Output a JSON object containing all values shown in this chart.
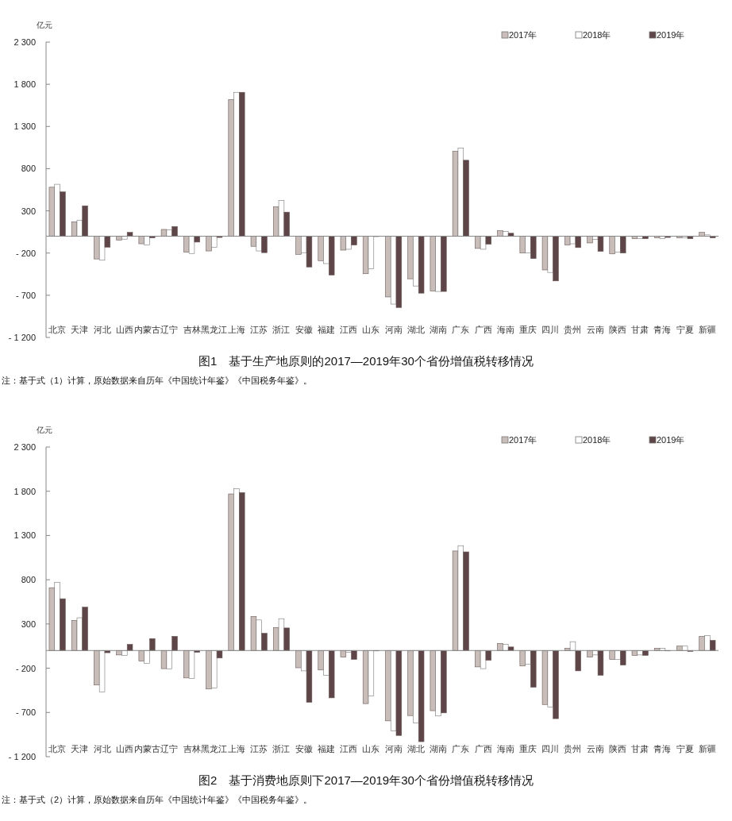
{
  "chart_data": [
    {
      "type": "bar",
      "title": "图1　基于生产地原则的2017—2019年30个省份增值税转移情况",
      "ylabel": "亿元",
      "annotations": [
        "注：基于式（1）计算，原始数据来自历年《中国统计年鉴》《中国税务年鉴》。"
      ],
      "categories": [
        "北京",
        "天津",
        "河北",
        "山西",
        "内蒙古",
        "辽宁",
        "吉林",
        "黑龙江",
        "上海",
        "江苏",
        "浙江",
        "安徽",
        "福建",
        "江西",
        "山东",
        "河南",
        "湖北",
        "湖南",
        "广东",
        "广西",
        "海南",
        "重庆",
        "四川",
        "贵州",
        "云南",
        "陕西",
        "甘肃",
        "青海",
        "宁夏",
        "新疆"
      ],
      "series": [
        {
          "name": "2017年",
          "color": "#c8bdb8",
          "values": [
            580,
            170,
            -270,
            -45,
            -90,
            80,
            -190,
            -175,
            1620,
            -120,
            350,
            -215,
            -290,
            -165,
            -445,
            -720,
            -505,
            -650,
            1005,
            -145,
            65,
            -200,
            -400,
            -105,
            -80,
            -210,
            -30,
            -20,
            -20,
            45
          ]
        },
        {
          "name": "2018年",
          "color": "#ffffff",
          "values": [
            615,
            190,
            -285,
            -35,
            -105,
            75,
            -205,
            -130,
            1705,
            -175,
            425,
            -195,
            -325,
            -155,
            -385,
            -805,
            -590,
            -655,
            1045,
            -155,
            55,
            -200,
            -430,
            -90,
            -40,
            -190,
            -30,
            -30,
            -20,
            15
          ]
        },
        {
          "name": "2019年",
          "color": "#5e4548",
          "values": [
            525,
            360,
            -130,
            45,
            -20,
            115,
            -70,
            -15,
            1705,
            -195,
            285,
            -365,
            -460,
            -105,
            0,
            -845,
            -675,
            -655,
            900,
            -95,
            35,
            -265,
            -530,
            -135,
            -180,
            -200,
            -30,
            -15,
            -30,
            -20
          ]
        }
      ],
      "ylim": [
        -1200,
        2300
      ],
      "yticks": [
        {
          "value": 2300,
          "label": "2 300"
        },
        {
          "value": 1800,
          "label": "1 800"
        },
        {
          "value": 1300,
          "label": "1 300"
        },
        {
          "value": 800,
          "label": "800"
        },
        {
          "value": 300,
          "label": "300"
        },
        {
          "value": -200,
          "label": "- 200"
        },
        {
          "value": -700,
          "label": "- 700"
        },
        {
          "value": -1200,
          "label": "- 1 200"
        }
      ],
      "legend": "top right",
      "grid": false
    },
    {
      "type": "bar",
      "title": "图2　基于消费地原则下2017—2019年30个省份增值税转移情况",
      "ylabel": "亿元",
      "annotations": [
        "注：基于式（2）计算，原始数据来自历年《中国统计年鉴》《中国税务年鉴》。"
      ],
      "categories": [
        "北京",
        "天津",
        "河北",
        "山西",
        "内蒙古",
        "辽宁",
        "吉林",
        "黑龙江",
        "上海",
        "江苏",
        "浙江",
        "安徽",
        "福建",
        "江西",
        "山东",
        "河南",
        "湖北",
        "湖南",
        "广东",
        "广西",
        "海南",
        "重庆",
        "四川",
        "贵州",
        "云南",
        "陕西",
        "甘肃",
        "青海",
        "宁夏",
        "新疆"
      ],
      "series": [
        {
          "name": "2017年",
          "color": "#c8bdb8",
          "values": [
            710,
            340,
            -390,
            -50,
            -120,
            -205,
            -310,
            -435,
            1770,
            385,
            260,
            -195,
            -220,
            -75,
            -600,
            -795,
            -735,
            -680,
            1125,
            -185,
            80,
            -175,
            -610,
            25,
            -75,
            -100,
            -55,
            25,
            50,
            160
          ]
        },
        {
          "name": "2018年",
          "color": "#ffffff",
          "values": [
            770,
            370,
            -470,
            -55,
            -145,
            -210,
            -315,
            -425,
            1830,
            345,
            360,
            -230,
            -280,
            -20,
            -515,
            -910,
            -820,
            -740,
            1185,
            -205,
            70,
            -155,
            -640,
            100,
            -50,
            -100,
            -50,
            25,
            50,
            170
          ]
        },
        {
          "name": "2019年",
          "color": "#5e4548",
          "values": [
            585,
            490,
            -25,
            70,
            135,
            160,
            -20,
            -85,
            1785,
            195,
            255,
            -585,
            -535,
            -100,
            0,
            -960,
            -1030,
            -705,
            1115,
            -110,
            40,
            -415,
            -770,
            -230,
            -280,
            -165,
            -55,
            0,
            -10,
            115
          ]
        }
      ],
      "ylim": [
        -1200,
        2300
      ],
      "yticks": [
        {
          "value": 2300,
          "label": "2 300"
        },
        {
          "value": 1800,
          "label": "1 800"
        },
        {
          "value": 1300,
          "label": "1 300"
        },
        {
          "value": 800,
          "label": "800"
        },
        {
          "value": 300,
          "label": "300"
        },
        {
          "value": -200,
          "label": "- 200"
        },
        {
          "value": -700,
          "label": "- 700"
        },
        {
          "value": -1200,
          "label": "- 1 200"
        }
      ],
      "legend": "top right",
      "grid": false
    }
  ]
}
